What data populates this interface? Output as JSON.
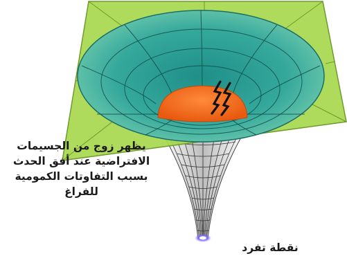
{
  "captions": {
    "particle_pair": "يظهر زوج من الجسيمات الافتراضية عند أفق الحدث بسبب التفاوتات الكمومية للفراغ",
    "singularity": "نقطة تفرد"
  },
  "icons": {
    "particle_pair": "double-lightning-icon"
  },
  "colors": {
    "spacetime_plane": "#a8d84e",
    "funnel_well": "#3fb3a0",
    "event_horizon": "#f07020",
    "funnel_throat": "#d8d8d8",
    "singularity": "#5a4ad8"
  }
}
